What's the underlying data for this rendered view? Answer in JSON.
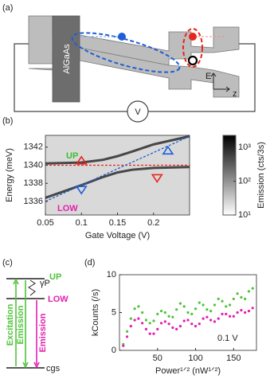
{
  "panels": {
    "a": {
      "label": "(a)",
      "barrier": "AlGaAs",
      "source": "V",
      "field": "E",
      "axis": "z"
    },
    "c": {
      "label": "(c)",
      "up": "UP",
      "low": "LOW",
      "ground": "cgs",
      "excitation": "Excitation",
      "emission_up": "Emission",
      "emission_low": "Emission",
      "rate": "γP"
    }
  },
  "chart_data": [
    {
      "type": "heatmap",
      "label": "(b)",
      "xlabel": "Gate Voltage (V)",
      "ylabel": "Energy (meV)",
      "xlim": [
        0.05,
        0.25
      ],
      "ylim": [
        1334.5,
        1343.3
      ],
      "xticks": [
        0.05,
        0.1,
        0.15,
        0.2
      ],
      "yticks": [
        1336,
        1338,
        1340,
        1342
      ],
      "x": [
        0.05,
        0.1,
        0.13,
        0.15,
        0.17,
        0.2,
        0.25
      ],
      "series": [
        {
          "color": "#222222",
          "values": [
            1340.2,
            1340.3,
            1340.6,
            1341.0,
            1341.5,
            1342.3,
            1343.2
          ]
        },
        {
          "color": "#222222",
          "values": [
            1336.4,
            1337.8,
            1338.7,
            1339.2,
            1339.5,
            1339.7,
            1339.8
          ]
        }
      ],
      "guides": [
        {
          "color": "#e8251c",
          "x": [
            0.05,
            0.25
          ],
          "y": [
            1340,
            1340
          ]
        },
        {
          "color": "#1f5fd6",
          "x": [
            0.05,
            0.25
          ],
          "y": [
            1336.0,
            1343.2
          ]
        }
      ],
      "markers": [
        {
          "x": 0.1,
          "y": 1340.5,
          "color": "#e8251c",
          "shape": "up"
        },
        {
          "x": 0.1,
          "y": 1337.3,
          "color": "#1f5fd6",
          "shape": "down"
        },
        {
          "x": 0.22,
          "y": 1341.6,
          "color": "#1f5fd6",
          "shape": "up"
        },
        {
          "x": 0.205,
          "y": 1338.6,
          "color": "#e8251c",
          "shape": "down"
        }
      ],
      "annotations": [
        {
          "text": "UP",
          "color": "#3bbf2b"
        },
        {
          "text": "LOW",
          "color": "#e21fb0"
        }
      ],
      "colorbar": {
        "label": "Emission (cts/3s)",
        "scale": "log",
        "clim": [
          10,
          2300
        ],
        "ticks": [
          {
            "value": 10,
            "label": "10¹"
          },
          {
            "value": 100,
            "label": "10²"
          },
          {
            "value": 1000,
            "label": "10³"
          }
        ]
      }
    },
    {
      "type": "scatter",
      "label": "(d)",
      "xlabel": "Power¹ᐟ² (nW¹ᐟ²)",
      "ylabel": "kCounts (/s)",
      "xlim": [
        0,
        180
      ],
      "ylim": [
        0,
        10
      ],
      "xticks": [
        50,
        100,
        150
      ],
      "yticks": [
        0,
        5,
        10
      ],
      "annotation": "0.1 V",
      "x": [
        5,
        10,
        15,
        20,
        25,
        30,
        35,
        40,
        45,
        50,
        55,
        60,
        65,
        70,
        75,
        80,
        85,
        90,
        95,
        100,
        105,
        110,
        115,
        120,
        125,
        130,
        135,
        140,
        145,
        150,
        155,
        160,
        165,
        170,
        175
      ],
      "series": [
        {
          "color": "#4fc43a",
          "values": [
            0.8,
            2.5,
            4.2,
            5.5,
            5.8,
            5.0,
            4.0,
            3.6,
            3.9,
            4.8,
            5.2,
            5.0,
            4.5,
            4.4,
            5.4,
            6.2,
            5.8,
            5.0,
            4.8,
            5.5,
            6.3,
            6.0,
            5.4,
            5.2,
            6.0,
            6.8,
            6.5,
            5.8,
            6.0,
            6.8,
            7.5,
            7.0,
            6.8,
            7.8,
            8.2
          ]
        },
        {
          "color": "#e21fb0",
          "values": [
            0.6,
            1.8,
            3.2,
            4.0,
            4.2,
            3.6,
            2.8,
            2.2,
            2.2,
            2.8,
            3.6,
            3.8,
            3.5,
            3.0,
            2.8,
            3.2,
            3.9,
            4.0,
            3.5,
            3.2,
            3.5,
            4.2,
            4.4,
            4.0,
            3.8,
            4.2,
            4.8,
            4.8,
            4.5,
            4.5,
            5.0,
            5.3,
            5.0,
            5.2,
            5.6
          ]
        }
      ]
    }
  ]
}
